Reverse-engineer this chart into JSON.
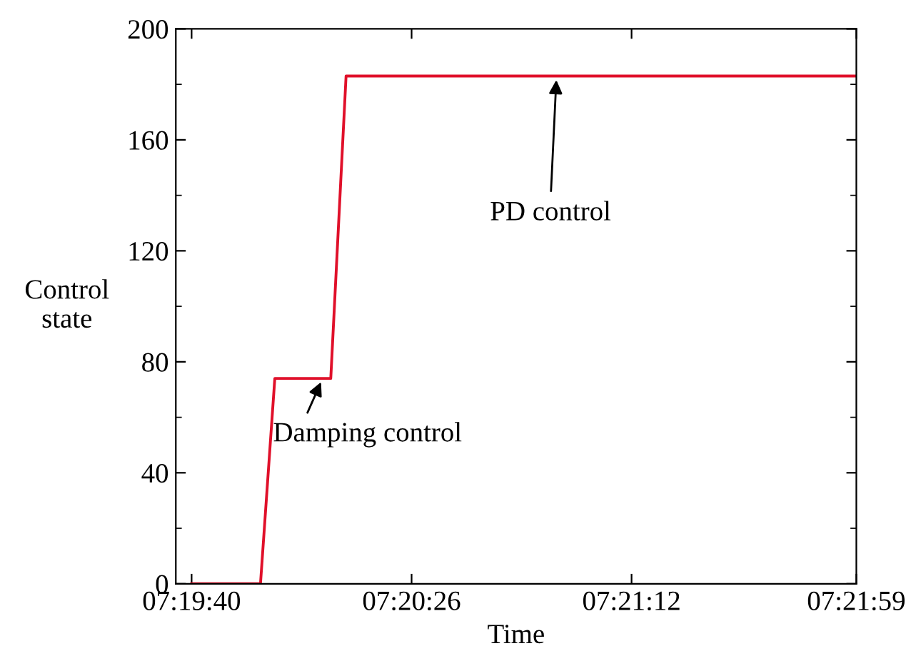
{
  "chart_data": {
    "type": "line",
    "xlabel": "Time",
    "ylabel": "Control\nstate",
    "x": [
      7.327778,
      7.331778,
      7.332611,
      7.335861,
      7.33675,
      7.366389
    ],
    "series": [
      {
        "color": "#e0102a",
        "values": [
          0,
          0,
          74,
          74,
          183,
          183
        ]
      }
    ],
    "xlim": [
      7.326861,
      7.366389
    ],
    "ylim": [
      0,
      200
    ],
    "xticks": [
      {
        "value": 7.327778,
        "label": "07:19:40"
      },
      {
        "value": 7.340556,
        "label": "07:20:26"
      },
      {
        "value": 7.353333,
        "label": "07:21:12"
      },
      {
        "value": 7.366389,
        "label": "07:21:59"
      }
    ],
    "yticks": [
      0,
      {
        "value": 20,
        "label": null
      },
      40,
      {
        "value": 60,
        "label": null
      },
      80,
      {
        "value": 100,
        "label": null
      },
      120,
      {
        "value": 140,
        "label": null
      },
      160,
      {
        "value": 180,
        "label": null
      },
      200
    ],
    "annotations": [
      {
        "text": "Damping control",
        "x": 7.335389,
        "y": 74
      },
      {
        "text": "PD control",
        "x": 7.348972,
        "y": 183
      }
    ],
    "grid": false,
    "marker": "none",
    "line_style": "solid"
  }
}
